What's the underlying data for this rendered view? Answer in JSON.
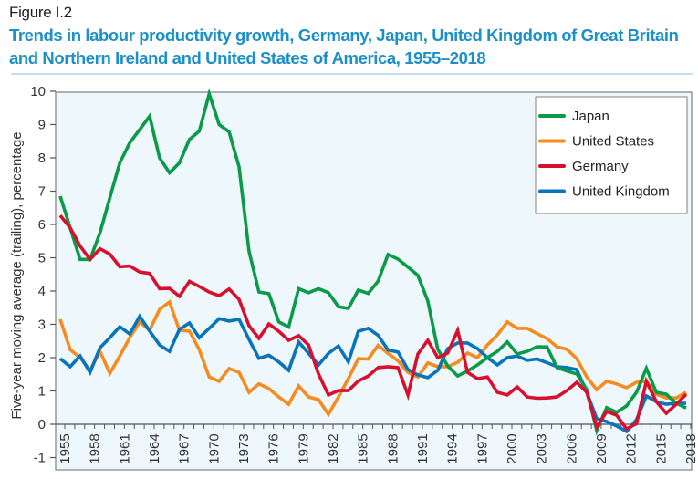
{
  "figure": {
    "label": "Figure I.2",
    "title": "Trends in labour productivity growth, Germany, Japan, United Kingdom of Great Britain and Northern Ireland and United States of America, 1955–2018"
  },
  "chart_data": {
    "type": "line",
    "title": "Trends in labour productivity growth, Germany, Japan, United Kingdom of Great Britain and Northern Ireland and United States of America, 1955–2018",
    "xlabel": "",
    "ylabel": "Five-year moving average (trailing), percentage",
    "xlim": [
      1955,
      2018
    ],
    "ylim": [
      -1,
      10
    ],
    "yticks": [
      -1,
      0,
      1,
      2,
      3,
      4,
      5,
      6,
      7,
      8,
      9,
      10
    ],
    "xtick_labels": [
      "1955",
      "1958",
      "1961",
      "1964",
      "1967",
      "1970",
      "1973",
      "1976",
      "1979",
      "1982",
      "1985",
      "1988",
      "1991",
      "1994",
      "1997",
      "2000",
      "2003",
      "2006",
      "2009",
      "2012",
      "2015",
      "2018"
    ],
    "grid": false,
    "legend_position": "top-right",
    "x": [
      1955,
      1956,
      1957,
      1958,
      1959,
      1960,
      1961,
      1962,
      1963,
      1964,
      1965,
      1966,
      1967,
      1968,
      1969,
      1970,
      1971,
      1972,
      1973,
      1974,
      1975,
      1976,
      1977,
      1978,
      1979,
      1980,
      1981,
      1982,
      1983,
      1984,
      1985,
      1986,
      1987,
      1988,
      1989,
      1990,
      1991,
      1992,
      1993,
      1994,
      1995,
      1996,
      1997,
      1998,
      1999,
      2000,
      2001,
      2002,
      2003,
      2004,
      2005,
      2006,
      2007,
      2008,
      2009,
      2010,
      2011,
      2012,
      2013,
      2014,
      2015,
      2016,
      2017,
      2018
    ],
    "series": [
      {
        "name": "Japan",
        "color": "#0a9a48",
        "values": [
          6.85,
          5.9,
          4.95,
          4.95,
          5.75,
          6.8,
          7.85,
          8.45,
          8.85,
          9.25,
          8.0,
          7.55,
          7.85,
          8.55,
          8.8,
          9.92,
          9.0,
          8.78,
          7.73,
          5.2,
          3.97,
          3.92,
          3.07,
          2.92,
          4.07,
          3.95,
          4.07,
          3.95,
          3.53,
          3.48,
          4.03,
          3.93,
          4.3,
          5.1,
          4.96,
          4.72,
          4.47,
          3.7,
          2.25,
          1.75,
          1.45,
          1.6,
          1.78,
          2.0,
          2.19,
          2.47,
          2.11,
          2.19,
          2.33,
          2.32,
          1.7,
          1.6,
          1.51,
          1.04,
          -0.19,
          0.5,
          0.36,
          0.55,
          0.96,
          1.68,
          0.96,
          0.9,
          0.63,
          0.49
        ]
      },
      {
        "name": "United States",
        "color": "#f68b1f",
        "values": [
          3.15,
          2.24,
          2.0,
          1.62,
          2.19,
          1.53,
          2.05,
          2.6,
          3.07,
          2.82,
          3.45,
          3.67,
          2.82,
          2.8,
          2.24,
          1.42,
          1.29,
          1.67,
          1.56,
          0.96,
          1.21,
          1.07,
          0.82,
          0.6,
          1.15,
          0.82,
          0.74,
          0.3,
          0.82,
          1.37,
          1.97,
          1.96,
          2.37,
          2.13,
          1.9,
          1.56,
          1.42,
          1.84,
          1.73,
          1.73,
          1.86,
          2.14,
          2.0,
          2.38,
          2.68,
          3.07,
          2.88,
          2.88,
          2.72,
          2.57,
          2.33,
          2.25,
          1.97,
          1.42,
          1.04,
          1.29,
          1.21,
          1.1,
          1.26,
          1.29,
          0.9,
          0.79,
          0.79,
          0.96
        ]
      },
      {
        "name": "Germany",
        "color": "#d7102e",
        "values": [
          6.27,
          5.9,
          5.35,
          4.95,
          5.27,
          5.11,
          4.73,
          4.75,
          4.57,
          4.53,
          4.07,
          4.08,
          3.84,
          4.29,
          4.14,
          3.97,
          3.86,
          4.06,
          3.75,
          2.96,
          2.58,
          3.01,
          2.79,
          2.52,
          2.66,
          2.38,
          1.51,
          0.88,
          1.01,
          1.01,
          1.3,
          1.45,
          1.7,
          1.73,
          1.7,
          0.88,
          2.11,
          2.52,
          2.0,
          2.14,
          2.82,
          1.56,
          1.37,
          1.42,
          0.96,
          0.88,
          1.12,
          0.82,
          0.78,
          0.79,
          0.82,
          1.01,
          1.26,
          0.96,
          -0.08,
          0.38,
          0.27,
          -0.14,
          0.02,
          1.29,
          0.68,
          0.33,
          0.6,
          0.9
        ]
      },
      {
        "name": "United Kingdom",
        "color": "#0a74bb",
        "values": [
          1.97,
          1.73,
          2.05,
          1.56,
          2.3,
          2.6,
          2.93,
          2.71,
          3.24,
          2.8,
          2.38,
          2.19,
          2.85,
          3.04,
          2.6,
          2.88,
          3.17,
          3.1,
          3.15,
          2.55,
          1.98,
          2.07,
          1.87,
          1.62,
          2.47,
          2.13,
          1.78,
          2.13,
          2.35,
          1.87,
          2.79,
          2.88,
          2.67,
          2.23,
          2.17,
          1.64,
          1.48,
          1.4,
          1.62,
          2.27,
          2.44,
          2.44,
          2.27,
          2.0,
          1.78,
          2.0,
          2.05,
          1.92,
          1.96,
          1.85,
          1.73,
          1.7,
          1.64,
          0.96,
          0.17,
          0.08,
          -0.05,
          -0.22,
          0.14,
          0.85,
          0.68,
          0.6,
          0.63,
          0.63
        ]
      }
    ]
  }
}
